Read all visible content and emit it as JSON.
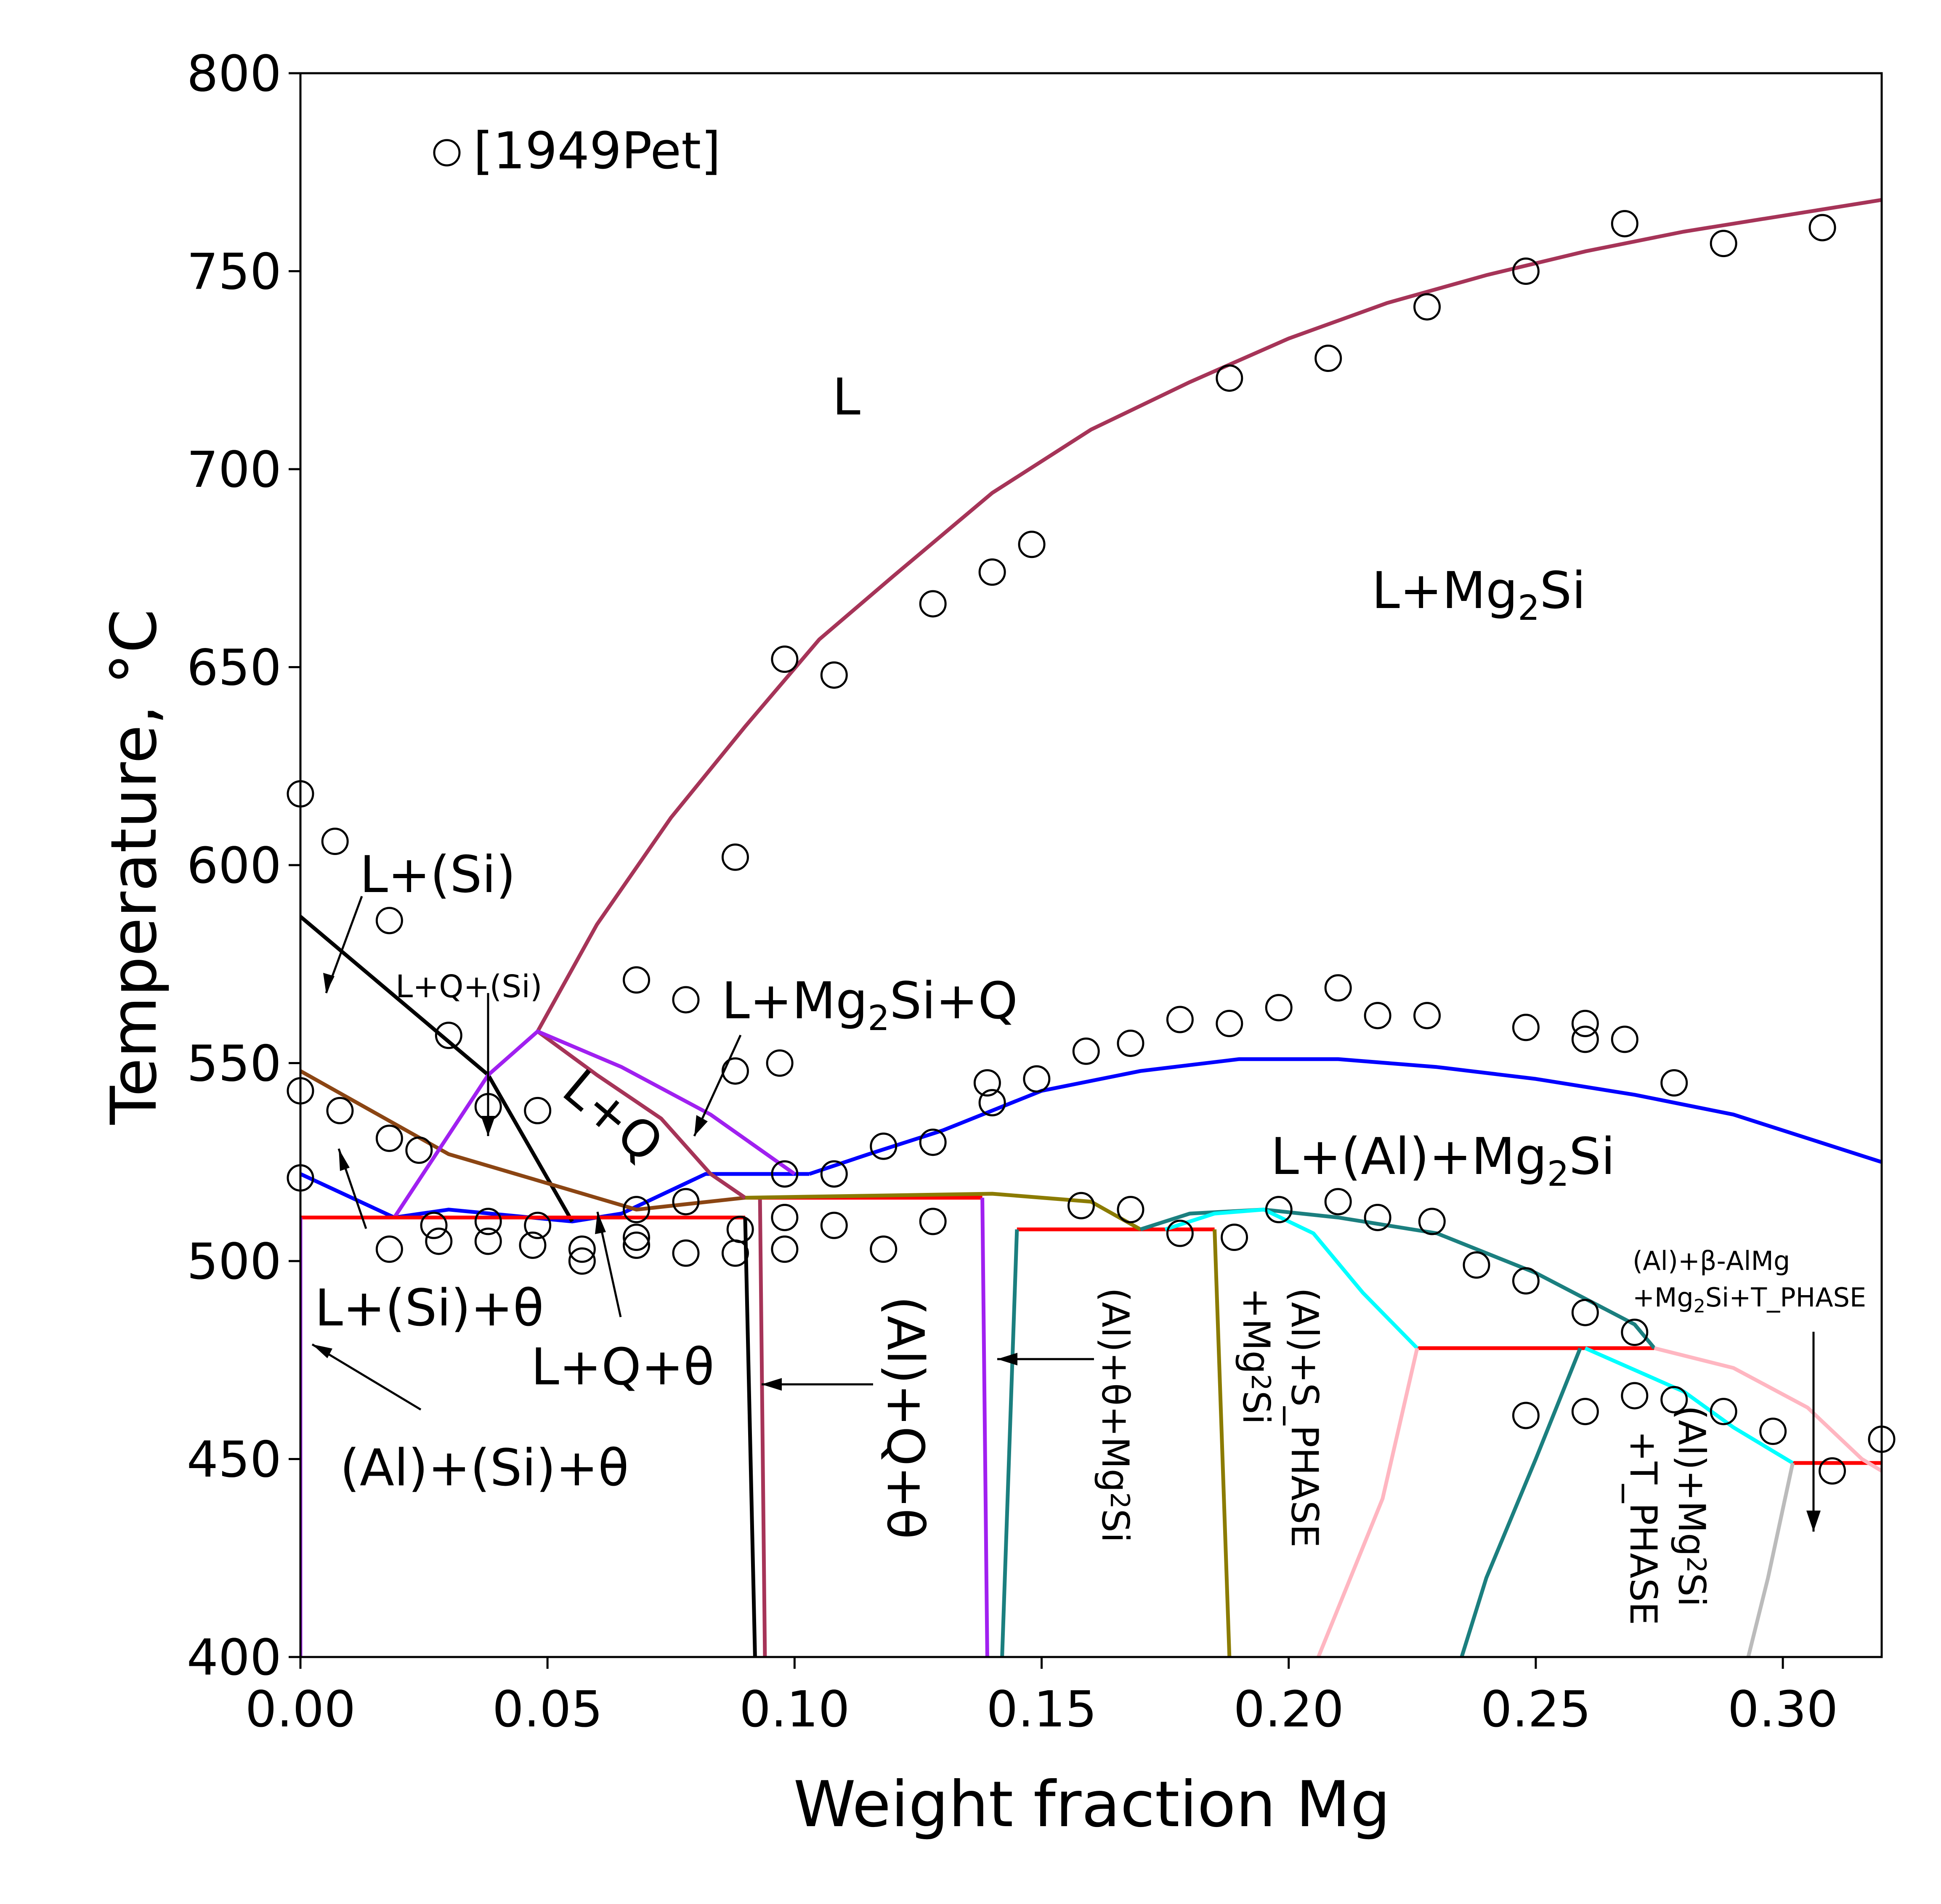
{
  "chart_data": {
    "type": "scatter",
    "xlabel": "Weight fraction Mg",
    "ylabel": "Temperature, °C",
    "xlim": [
      0.0,
      0.32
    ],
    "ylim": [
      400,
      800
    ],
    "xticks": [
      "0.00",
      "0.05",
      "0.10",
      "0.15",
      "0.20",
      "0.25",
      "0.30"
    ],
    "yticks": [
      "400",
      "450",
      "500",
      "550",
      "600",
      "650",
      "700",
      "750",
      "800"
    ],
    "grid": false,
    "legend": {
      "label": "[1949Pet]",
      "position": "top-left",
      "marker": "open-circle"
    },
    "experimental_points": {
      "name": "[1949Pet]",
      "points": [
        [
          0.0,
          618
        ],
        [
          0.0,
          543
        ],
        [
          0.0,
          521
        ],
        [
          0.007,
          606
        ],
        [
          0.008,
          538
        ],
        [
          0.018,
          586
        ],
        [
          0.018,
          531
        ],
        [
          0.018,
          503
        ],
        [
          0.024,
          528
        ],
        [
          0.027,
          509
        ],
        [
          0.028,
          505
        ],
        [
          0.03,
          557
        ],
        [
          0.038,
          539
        ],
        [
          0.038,
          510
        ],
        [
          0.038,
          505
        ],
        [
          0.047,
          504
        ],
        [
          0.048,
          538
        ],
        [
          0.048,
          509
        ],
        [
          0.057,
          503
        ],
        [
          0.057,
          500
        ],
        [
          0.068,
          571
        ],
        [
          0.068,
          513
        ],
        [
          0.068,
          506
        ],
        [
          0.068,
          504
        ],
        [
          0.078,
          566
        ],
        [
          0.078,
          515
        ],
        [
          0.078,
          502
        ],
        [
          0.088,
          602
        ],
        [
          0.088,
          548
        ],
        [
          0.089,
          508
        ],
        [
          0.088,
          502
        ],
        [
          0.098,
          652
        ],
        [
          0.097,
          550
        ],
        [
          0.098,
          522
        ],
        [
          0.098,
          511
        ],
        [
          0.098,
          503
        ],
        [
          0.108,
          648
        ],
        [
          0.108,
          522
        ],
        [
          0.108,
          509
        ],
        [
          0.118,
          529
        ],
        [
          0.118,
          503
        ],
        [
          0.128,
          666
        ],
        [
          0.128,
          530
        ],
        [
          0.128,
          510
        ],
        [
          0.14,
          674
        ],
        [
          0.139,
          545
        ],
        [
          0.14,
          540
        ],
        [
          0.148,
          681
        ],
        [
          0.149,
          546
        ],
        [
          0.159,
          553
        ],
        [
          0.158,
          514
        ],
        [
          0.168,
          555
        ],
        [
          0.168,
          513
        ],
        [
          0.178,
          561
        ],
        [
          0.178,
          507
        ],
        [
          0.188,
          723
        ],
        [
          0.188,
          560
        ],
        [
          0.189,
          506
        ],
        [
          0.198,
          564
        ],
        [
          0.198,
          513
        ],
        [
          0.208,
          728
        ],
        [
          0.21,
          569
        ],
        [
          0.21,
          515
        ],
        [
          0.218,
          562
        ],
        [
          0.218,
          511
        ],
        [
          0.228,
          741
        ],
        [
          0.228,
          562
        ],
        [
          0.229,
          510
        ],
        [
          0.238,
          499
        ],
        [
          0.248,
          750
        ],
        [
          0.248,
          559
        ],
        [
          0.248,
          495
        ],
        [
          0.248,
          461
        ],
        [
          0.26,
          560
        ],
        [
          0.26,
          556
        ],
        [
          0.26,
          487
        ],
        [
          0.26,
          462
        ],
        [
          0.268,
          762
        ],
        [
          0.268,
          556
        ],
        [
          0.27,
          482
        ],
        [
          0.27,
          466
        ],
        [
          0.278,
          545
        ],
        [
          0.278,
          465
        ],
        [
          0.288,
          757
        ],
        [
          0.288,
          462
        ],
        [
          0.298,
          457
        ],
        [
          0.308,
          761
        ],
        [
          0.31,
          447
        ],
        [
          0.32,
          455
        ]
      ]
    },
    "phase_boundaries": [
      {
        "name": "L / L+Mg2Si liquidus",
        "color": "#A63458",
        "points": [
          [
            0.048,
            558
          ],
          [
            0.06,
            585
          ],
          [
            0.075,
            612
          ],
          [
            0.09,
            635
          ],
          [
            0.105,
            657
          ],
          [
            0.12,
            673
          ],
          [
            0.14,
            694
          ],
          [
            0.16,
            710
          ],
          [
            0.18,
            722
          ],
          [
            0.2,
            733
          ],
          [
            0.22,
            742
          ],
          [
            0.24,
            749
          ],
          [
            0.26,
            755
          ],
          [
            0.28,
            760
          ],
          [
            0.3,
            764
          ],
          [
            0.32,
            768
          ]
        ]
      },
      {
        "name": "L+Mg2Si / L+(Al)+Mg2Si",
        "color": "#0000FF",
        "points": [
          [
            0.103,
            522
          ],
          [
            0.115,
            527
          ],
          [
            0.13,
            533
          ],
          [
            0.15,
            543
          ],
          [
            0.17,
            548
          ],
          [
            0.19,
            551
          ],
          [
            0.2,
            551
          ],
          [
            0.21,
            551
          ],
          [
            0.23,
            549
          ],
          [
            0.25,
            546
          ],
          [
            0.27,
            542
          ],
          [
            0.29,
            537
          ],
          [
            0.32,
            525
          ]
        ]
      },
      {
        "name": "L+(Al) boundary",
        "color": "#0000FF",
        "points": [
          [
            0.0,
            522
          ],
          [
            0.019,
            511
          ],
          [
            0.03,
            513
          ],
          [
            0.055,
            510
          ],
          [
            0.065,
            512
          ],
          [
            0.082,
            522
          ],
          [
            0.103,
            522
          ]
        ]
      },
      {
        "name": "L+(Si) liquidus",
        "color": "#000000",
        "points": [
          [
            0.0,
            587
          ],
          [
            0.038,
            547
          ],
          [
            0.055,
            510
          ]
        ]
      },
      {
        "name": "L+Q lower",
        "color": "#8B4513",
        "points": [
          [
            0.0,
            548
          ],
          [
            0.03,
            527
          ],
          [
            0.068,
            513
          ],
          [
            0.09,
            516
          ]
        ]
      },
      {
        "name": "L+Q / Mg2Si boundary",
        "color": "#A63458",
        "points": [
          [
            0.048,
            558
          ],
          [
            0.06,
            547
          ],
          [
            0.073,
            536
          ],
          [
            0.083,
            522
          ],
          [
            0.09,
            516
          ]
        ]
      },
      {
        "name": "L+Mg2Si+Q boundary",
        "color": "#A020F0",
        "points": [
          [
            0.019,
            511
          ],
          [
            0.038,
            547
          ],
          [
            0.048,
            558
          ],
          [
            0.065,
            549
          ],
          [
            0.083,
            537
          ],
          [
            0.1,
            522
          ]
        ]
      },
      {
        "name": "eutectic 511",
        "color": "#FF0000",
        "points": [
          [
            0.0,
            511
          ],
          [
            0.09,
            511
          ]
        ]
      },
      {
        "name": "eutectic 516",
        "color": "#FF0000",
        "points": [
          [
            0.09,
            516
          ],
          [
            0.138,
            516
          ]
        ]
      },
      {
        "name": "eutectic 508",
        "color": "#FF0000",
        "points": [
          [
            0.145,
            508
          ],
          [
            0.185,
            508
          ]
        ]
      },
      {
        "name": "eutectic 478",
        "color": "#FF0000",
        "points": [
          [
            0.226,
            478
          ],
          [
            0.274,
            478
          ]
        ]
      },
      {
        "name": "eutectic 449",
        "color": "#FF0000",
        "points": [
          [
            0.302,
            449
          ],
          [
            0.32,
            449
          ]
        ]
      },
      {
        "name": "(Al) solvus Si",
        "color": "#A020F0",
        "points": [
          [
            0.0,
            511
          ],
          [
            0.0,
            400
          ]
        ]
      },
      {
        "name": "(Al)+Q+theta black",
        "color": "#000000",
        "points": [
          [
            0.09,
            511
          ],
          [
            0.092,
            400
          ]
        ]
      },
      {
        "name": "(Al)+Q+theta maroon",
        "color": "#A63458",
        "points": [
          [
            0.093,
            516
          ],
          [
            0.094,
            400
          ]
        ]
      },
      {
        "name": "(Al)+theta+Mg2Si purple",
        "color": "#A020F0",
        "points": [
          [
            0.138,
            516
          ],
          [
            0.139,
            400
          ]
        ]
      },
      {
        "name": "(Al)+theta+Mg2Si teal",
        "color": "#1B7F7F",
        "points": [
          [
            0.145,
            508
          ],
          [
            0.142,
            400
          ]
        ]
      },
      {
        "name": "(Al)+S_PHASE olive",
        "color": "#8B7B00",
        "points": [
          [
            0.185,
            508
          ],
          [
            0.188,
            400
          ]
        ]
      },
      {
        "name": "S_PHASE olive top",
        "color": "#8B7B00",
        "points": [
          [
            0.09,
            516
          ],
          [
            0.14,
            517
          ],
          [
            0.16,
            515
          ],
          [
            0.17,
            508
          ]
        ]
      },
      {
        "name": "L+(Al)+Mg2Si teal top",
        "color": "#1B7F7F",
        "points": [
          [
            0.17,
            508
          ],
          [
            0.18,
            512
          ],
          [
            0.195,
            513
          ],
          [
            0.21,
            511
          ],
          [
            0.23,
            507
          ],
          [
            0.25,
            497
          ],
          [
            0.27,
            484
          ],
          [
            0.274,
            478
          ]
        ]
      },
      {
        "name": "cyan right",
        "color": "#00FFFF",
        "points": [
          [
            0.175,
            508
          ],
          [
            0.185,
            512
          ],
          [
            0.195,
            513
          ],
          [
            0.205,
            507
          ],
          [
            0.215,
            492
          ],
          [
            0.226,
            478
          ]
        ]
      },
      {
        "name": "cyan lower",
        "color": "#00FFFF",
        "points": [
          [
            0.26,
            478
          ],
          [
            0.28,
            467
          ],
          [
            0.29,
            458
          ],
          [
            0.302,
            449
          ]
        ]
      },
      {
        "name": "pink upper",
        "color": "#FFB6C1",
        "points": [
          [
            0.274,
            478
          ],
          [
            0.29,
            473
          ],
          [
            0.305,
            463
          ],
          [
            0.316,
            450
          ],
          [
            0.32,
            447
          ]
        ]
      },
      {
        "name": "pink lower",
        "color": "#FFB6C1",
        "points": [
          [
            0.226,
            478
          ],
          [
            0.219,
            440
          ],
          [
            0.206,
            400
          ]
        ]
      },
      {
        "name": "teal lower",
        "color": "#1B7F7F",
        "points": [
          [
            0.259,
            478
          ],
          [
            0.25,
            450
          ],
          [
            0.24,
            420
          ],
          [
            0.235,
            400
          ]
        ]
      },
      {
        "name": "gray",
        "color": "#BBBBBB",
        "points": [
          [
            0.302,
            449
          ],
          [
            0.297,
            420
          ],
          [
            0.293,
            400
          ]
        ]
      }
    ],
    "annotations": [
      "L",
      "L+Mg2Si",
      "L+(Si)",
      "L+Q+(Si)",
      "L+Mg2Si+Q",
      "L+Q",
      "L+(Al)+Mg2Si",
      "L+(Si)+θ",
      "L+Q+θ",
      "(Al)+(Si)+θ",
      "(Al)+Q+θ",
      "(Al)+θ+Mg2Si",
      "(Al)+S_PHASE +Mg2Si",
      "(Al)+Mg2Si +T_PHASE",
      "(Al)+β-AlMg +Mg2Si+T_PHASE"
    ],
    "colors": {
      "liquidus": "#A63458",
      "al_liquidus": "#0000FF",
      "eutectic": "#FF0000"
    }
  }
}
